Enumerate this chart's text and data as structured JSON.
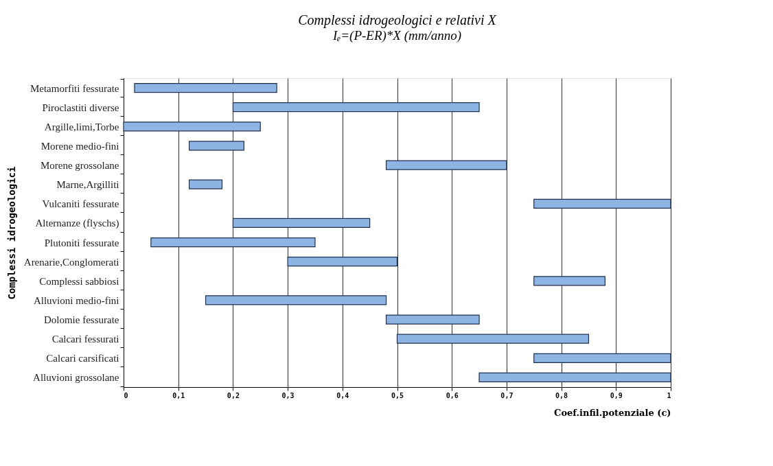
{
  "chart_data": {
    "type": "bar",
    "orientation": "horizontal",
    "title": "Complessi idrogeologici e relativi X",
    "subtitle": "Iₑ=(P-ER)*X  (mm/anno)",
    "xlabel": "Coef.infil.potenziale (c)",
    "ylabel": "Complessi idrogeologici",
    "categories": [
      "Metamorfiti fessurate",
      "Piroclastiti diverse",
      "Argille,limi,Torbe",
      "Morene medio-fini",
      "Morene grossolane",
      "Marne,Argilliti",
      "Vulcaniti fessurate",
      "Alternanze (flyschs)",
      "Plutoniti fessurate",
      "Arenarie,Conglomerati",
      "Complessi sabbiosi",
      "Alluvioni medio-fini",
      "Dolomie fessurate",
      "Calcari fessurati",
      "Calcari carsificati",
      "Alluvioni grossolane"
    ],
    "base": [
      0.02,
      0.2,
      0,
      0.12,
      0.48,
      0.12,
      0.75,
      0.2,
      0.05,
      0.3,
      0.75,
      0.15,
      0.48,
      0.5,
      0.75,
      0.65
    ],
    "values": [
      0.26,
      0.45,
      0.25,
      0.1,
      0.22,
      0.06,
      0.25,
      0.25,
      0.3,
      0.2,
      0.13,
      0.33,
      0.17,
      0.35,
      0.25,
      0.35
    ],
    "color": "#8db4e2",
    "xlim": [
      0,
      1
    ],
    "xticks": [
      0,
      {
        "value": 0.1,
        "label": "0,1"
      },
      {
        "value": 0.2,
        "label": "0,2"
      },
      {
        "value": 0.3,
        "label": "0,3"
      },
      {
        "value": 0.4,
        "label": "0,4"
      },
      {
        "value": 0.5,
        "label": "0,5"
      },
      {
        "value": 0.6,
        "label": "0,6"
      },
      {
        "value": 0.7,
        "label": "0,7"
      },
      {
        "value": 0.8,
        "label": "0,8"
      },
      {
        "value": 0.9,
        "label": "0,9"
      },
      1
    ],
    "grid": "x"
  }
}
